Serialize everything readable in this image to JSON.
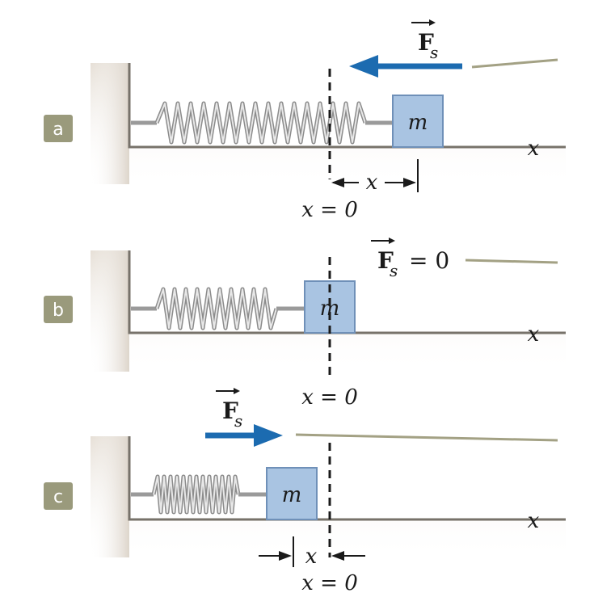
{
  "panels": [
    {
      "label": "a",
      "mass_label": "m",
      "axis_label": "x",
      "force_symbol": "F",
      "force_subscript": "s",
      "force_suffix": "",
      "force_direction": "left",
      "displacement_label": "x",
      "origin_label": "x = 0"
    },
    {
      "label": "b",
      "mass_label": "m",
      "axis_label": "x",
      "force_symbol": "F",
      "force_subscript": "s",
      "force_suffix": "= 0",
      "force_direction": "none",
      "displacement_label": "",
      "origin_label": "x = 0"
    },
    {
      "label": "c",
      "mass_label": "m",
      "axis_label": "x",
      "force_symbol": "F",
      "force_subscript": "s",
      "force_suffix": "",
      "force_direction": "right",
      "displacement_label": "x",
      "origin_label": "x = 0"
    }
  ],
  "colors": {
    "force_arrow": "#1c6bb0",
    "mass_fill": "#a9c4e2",
    "label_badge": "#9a9a7c",
    "leader_line": "#a3a184"
  }
}
